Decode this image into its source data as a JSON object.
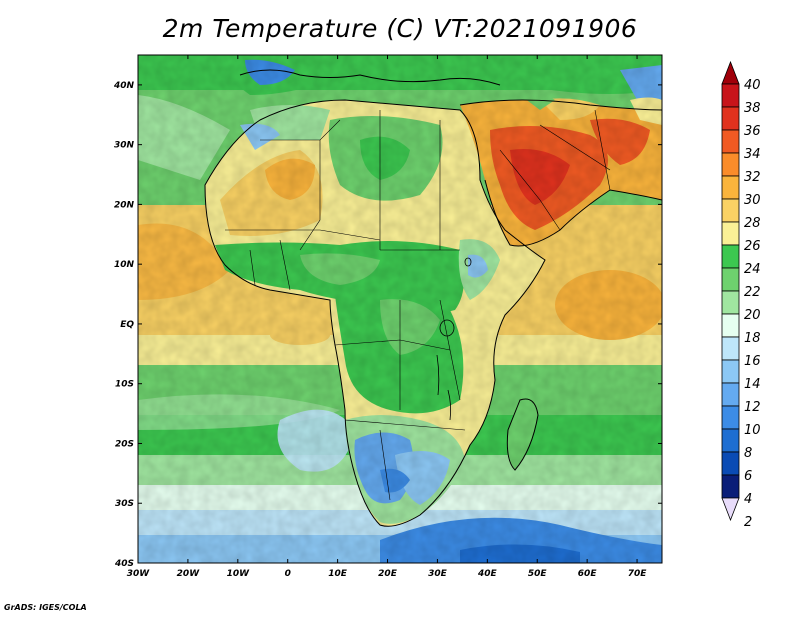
{
  "title": "2m Temperature (C) VT:2021091906",
  "credit": "GrADS: IGES/COLA",
  "map": {
    "lon_range": [
      -30,
      75
    ],
    "lat_range": [
      -40,
      45
    ],
    "lon_ticks": [
      "30W",
      "20W",
      "10W",
      "0",
      "10E",
      "20E",
      "30E",
      "40E",
      "50E",
      "60E",
      "70E"
    ],
    "lat_ticks": [
      "40N",
      "30N",
      "20N",
      "10N",
      "EQ",
      "10S",
      "20S",
      "30S",
      "40S"
    ]
  },
  "colorbar": {
    "labels": [
      "40",
      "38",
      "36",
      "34",
      "32",
      "30",
      "28",
      "26",
      "24",
      "22",
      "20",
      "18",
      "16",
      "14",
      "12",
      "10",
      "8",
      "6",
      "4",
      "2"
    ],
    "colors": [
      "#a0000a",
      "#c8141a",
      "#e1321e",
      "#f05a23",
      "#fa8c2a",
      "#fab43c",
      "#fad264",
      "#faf096",
      "#3cc850",
      "#6ed26e",
      "#a0e6a0",
      "#e6fff0",
      "#bee6fa",
      "#8cc8f5",
      "#64aaf0",
      "#3c8ce6",
      "#1e6ed2",
      "#0a4bb4",
      "#0a1e78",
      "#e8dcfa"
    ]
  }
}
